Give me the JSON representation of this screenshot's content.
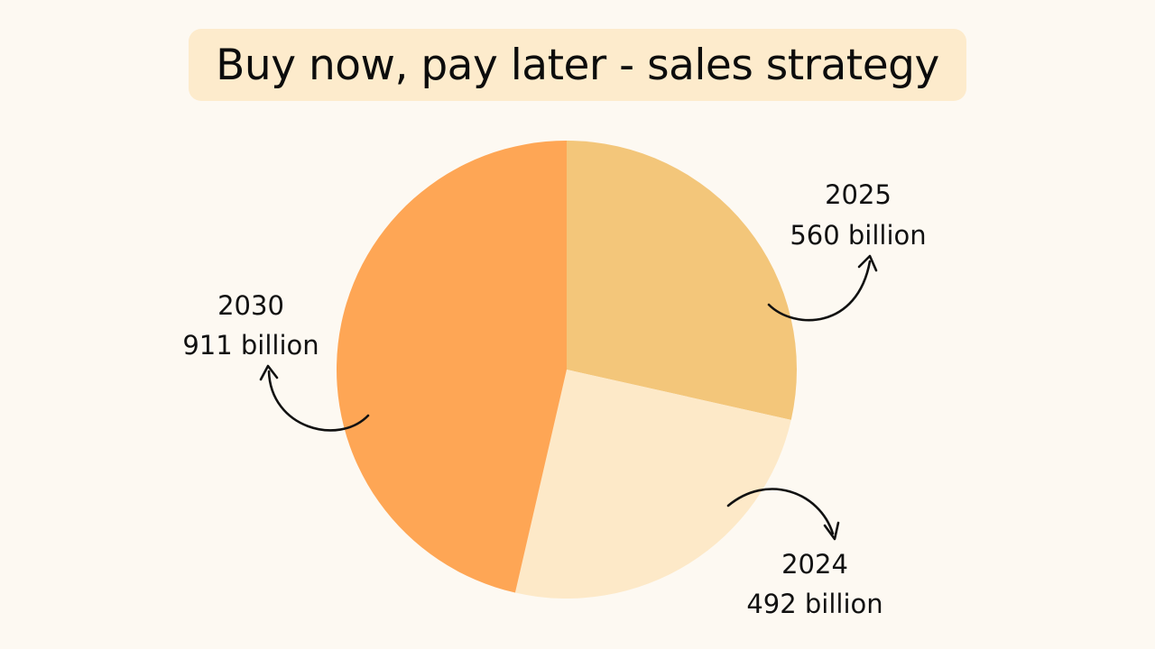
{
  "title": "Buy now, pay later - sales strategy",
  "colors": {
    "background": "#fdf9f2",
    "title_background": "#fdebcc"
  },
  "chart_data": {
    "type": "pie",
    "unit": "billion",
    "slices": [
      {
        "year": "2025",
        "value": 560,
        "value_label": "560 billion",
        "color": "#f3c67a"
      },
      {
        "year": "2024",
        "value": 492,
        "value_label": "492 billion",
        "color": "#fde9c8"
      },
      {
        "year": "2030",
        "value": 911,
        "value_label": "911 billion",
        "color": "#fea655"
      }
    ]
  }
}
